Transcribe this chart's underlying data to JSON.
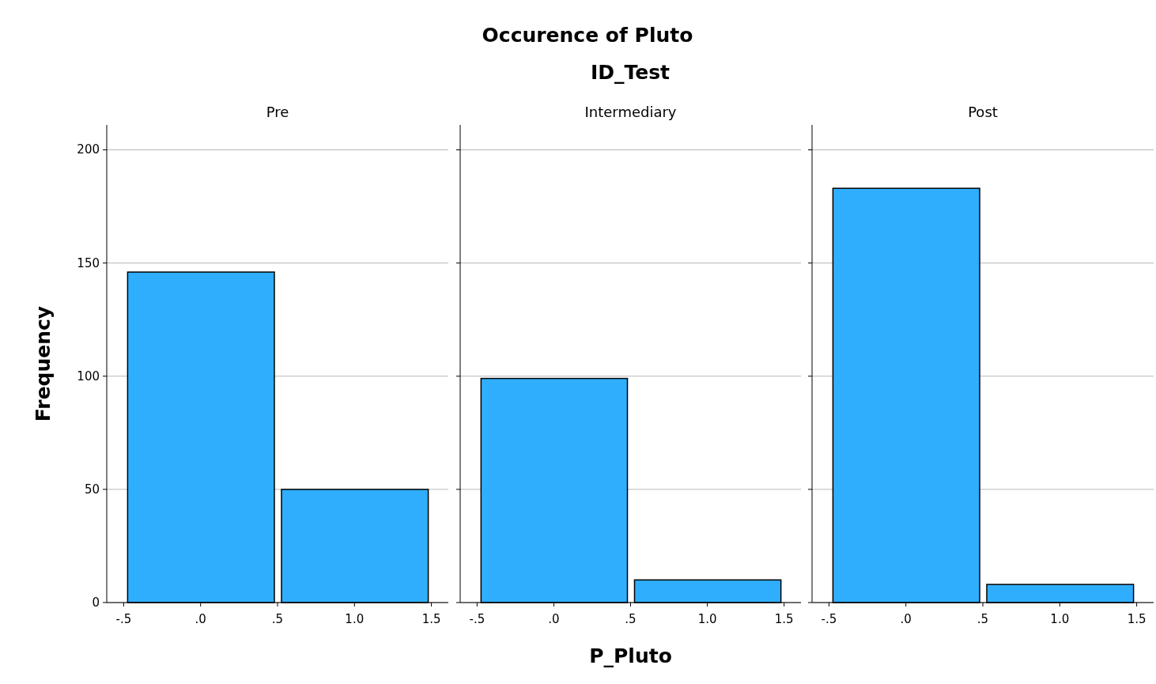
{
  "chart_data": [
    {
      "type": "histogram",
      "annotations": [
        "Occurence of Pluto",
        "ID_Test"
      ],
      "title": "Pre",
      "ylabel": "Frequency",
      "bins": [
        -0.5,
        0.5,
        1.5
      ],
      "values": [
        146,
        50
      ],
      "color": "#30aefe",
      "xlim": [
        -0.61,
        1.61
      ],
      "xticks": [
        {
          "value": -0.5,
          "label": "-.5"
        },
        {
          "value": 0,
          "label": ".0"
        },
        {
          "value": 0.5,
          "label": ".5"
        },
        {
          "value": 1,
          "label": "1.0"
        },
        {
          "value": 1.5,
          "label": "1.5"
        }
      ],
      "ylim": [
        0,
        211
      ],
      "yticks": [
        0,
        50,
        100,
        150,
        200
      ],
      "grid": "y"
    },
    {
      "type": "histogram",
      "title": "Intermediary",
      "xlabel": "P_Pluto",
      "bins": [
        -0.5,
        0.5,
        1.5
      ],
      "values": [
        99,
        10
      ],
      "color": "#30aefe",
      "xlim": [
        -0.61,
        1.61
      ],
      "xticks": [
        {
          "value": -0.5,
          "label": "-.5"
        },
        {
          "value": 0,
          "label": ".0"
        },
        {
          "value": 0.5,
          "label": ".5"
        },
        {
          "value": 1,
          "label": "1.0"
        },
        {
          "value": 1.5,
          "label": "1.5"
        }
      ],
      "ylim": [
        0,
        211
      ],
      "yticks": [
        0,
        50,
        100,
        150,
        200
      ],
      "grid": "y",
      "tick_labels": "x"
    },
    {
      "type": "histogram",
      "title": "Post",
      "bins": [
        -0.5,
        0.5,
        1.5
      ],
      "values": [
        183,
        8
      ],
      "color": "#30aefe",
      "xlim": [
        -0.61,
        1.61
      ],
      "xticks": [
        {
          "value": -0.5,
          "label": "-.5"
        },
        {
          "value": 0,
          "label": ".0"
        },
        {
          "value": 0.5,
          "label": ".5"
        },
        {
          "value": 1,
          "label": "1.0"
        },
        {
          "value": 1.5,
          "label": "1.5"
        }
      ],
      "ylim": [
        0,
        211
      ],
      "yticks": [
        0,
        50,
        100,
        150,
        200
      ],
      "grid": "y",
      "tick_labels": "x"
    }
  ]
}
